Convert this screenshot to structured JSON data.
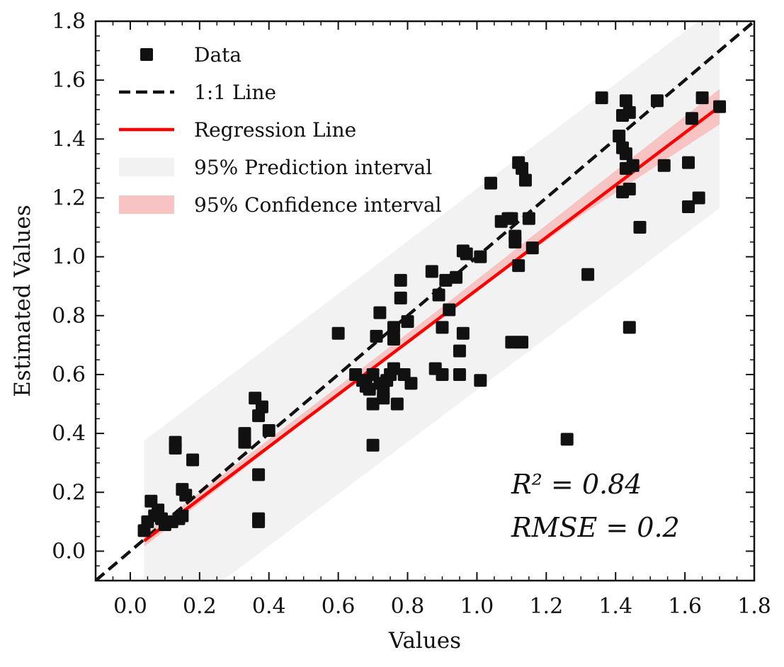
{
  "chart_data": {
    "type": "scatter",
    "title": "",
    "xlabel": "Values",
    "ylabel": "Estimated Values",
    "xlim": [
      -0.1,
      1.8
    ],
    "ylim": [
      -0.1,
      1.8
    ],
    "xticks": [
      "0.0",
      "0.2",
      "0.4",
      "0.6",
      "0.8",
      "1.0",
      "1.2",
      "1.4",
      "1.6",
      "1.8"
    ],
    "yticks": [
      "0.0",
      "0.2",
      "0.4",
      "0.6",
      "0.8",
      "1.0",
      "1.2",
      "1.4",
      "1.6",
      "1.8"
    ],
    "grid": false,
    "legend": {
      "position": "top-left",
      "entries": [
        {
          "label": "Data",
          "kind": "marker"
        },
        {
          "label": "1:1 Line",
          "kind": "dashed-line"
        },
        {
          "label": "Regression Line",
          "kind": "line"
        },
        {
          "label": "95% Prediction interval",
          "kind": "band-gray"
        },
        {
          "label": "95% Confidence interval",
          "kind": "band-red"
        }
      ]
    },
    "annotations": {
      "r2": "R² = 0.84",
      "rmse": "RMSE = 0.2"
    },
    "colors": {
      "points": "#111111",
      "one_to_one": "#111111",
      "regression": "#ff0000",
      "prediction_band": "#f2f2f2",
      "confidence_band": "#f7c3c3"
    },
    "regression": {
      "x": [
        0.04,
        1.7
      ],
      "y": [
        0.035,
        1.51
      ]
    },
    "prediction_interval": {
      "x": [
        0.04,
        1.7
      ],
      "lower": [
        -0.3,
        1.165
      ],
      "upper": [
        0.375,
        1.855
      ]
    },
    "confidence_interval": {
      "x": [
        0.04,
        0.5,
        0.9,
        1.3,
        1.7
      ],
      "lower": [
        0.015,
        0.44,
        0.8,
        1.14,
        1.45
      ],
      "upper": [
        0.055,
        0.47,
        0.83,
        1.2,
        1.57
      ]
    },
    "points": [
      [
        0.04,
        0.07
      ],
      [
        0.05,
        0.1
      ],
      [
        0.06,
        0.17
      ],
      [
        0.07,
        0.12
      ],
      [
        0.08,
        0.14
      ],
      [
        0.09,
        0.11
      ],
      [
        0.1,
        0.09
      ],
      [
        0.12,
        0.1
      ],
      [
        0.14,
        0.11
      ],
      [
        0.15,
        0.12
      ],
      [
        0.13,
        0.35
      ],
      [
        0.13,
        0.37
      ],
      [
        0.15,
        0.21
      ],
      [
        0.16,
        0.19
      ],
      [
        0.18,
        0.31
      ],
      [
        0.33,
        0.4
      ],
      [
        0.33,
        0.37
      ],
      [
        0.36,
        0.52
      ],
      [
        0.37,
        0.46
      ],
      [
        0.38,
        0.49
      ],
      [
        0.4,
        0.41
      ],
      [
        0.37,
        0.26
      ],
      [
        0.37,
        0.11
      ],
      [
        0.37,
        0.1
      ],
      [
        0.6,
        0.74
      ],
      [
        0.65,
        0.6
      ],
      [
        0.67,
        0.58
      ],
      [
        0.68,
        0.56
      ],
      [
        0.69,
        0.55
      ],
      [
        0.7,
        0.6
      ],
      [
        0.7,
        0.5
      ],
      [
        0.71,
        0.73
      ],
      [
        0.72,
        0.81
      ],
      [
        0.72,
        0.57
      ],
      [
        0.73,
        0.54
      ],
      [
        0.74,
        0.58
      ],
      [
        0.75,
        0.6
      ],
      [
        0.76,
        0.62
      ],
      [
        0.76,
        0.76
      ],
      [
        0.76,
        0.72
      ],
      [
        0.77,
        0.5
      ],
      [
        0.78,
        0.86
      ],
      [
        0.78,
        0.92
      ],
      [
        0.79,
        0.6
      ],
      [
        0.8,
        0.78
      ],
      [
        0.81,
        0.57
      ],
      [
        0.7,
        0.36
      ],
      [
        0.73,
        0.52
      ],
      [
        0.87,
        0.95
      ],
      [
        0.88,
        0.62
      ],
      [
        0.89,
        0.87
      ],
      [
        0.9,
        0.6
      ],
      [
        0.9,
        0.76
      ],
      [
        0.91,
        0.92
      ],
      [
        0.92,
        0.82
      ],
      [
        0.94,
        0.93
      ],
      [
        0.95,
        0.68
      ],
      [
        0.95,
        0.6
      ],
      [
        0.96,
        0.74
      ],
      [
        0.96,
        1.02
      ],
      [
        0.97,
        1.01
      ],
      [
        1.01,
        1.0
      ],
      [
        1.01,
        0.58
      ],
      [
        1.04,
        1.25
      ],
      [
        1.07,
        1.12
      ],
      [
        1.09,
        1.13
      ],
      [
        1.1,
        1.13
      ],
      [
        1.1,
        0.71
      ],
      [
        1.11,
        1.05
      ],
      [
        1.11,
        1.07
      ],
      [
        1.12,
        0.97
      ],
      [
        1.12,
        1.32
      ],
      [
        1.13,
        1.3
      ],
      [
        1.14,
        1.26
      ],
      [
        1.15,
        1.13
      ],
      [
        1.16,
        1.03
      ],
      [
        1.13,
        0.71
      ],
      [
        1.26,
        0.38
      ],
      [
        1.32,
        0.94
      ],
      [
        1.36,
        1.54
      ],
      [
        1.41,
        1.41
      ],
      [
        1.42,
        1.48
      ],
      [
        1.42,
        1.37
      ],
      [
        1.43,
        1.35
      ],
      [
        1.43,
        1.3
      ],
      [
        1.43,
        1.53
      ],
      [
        1.44,
        1.49
      ],
      [
        1.44,
        1.23
      ],
      [
        1.42,
        1.22
      ],
      [
        1.45,
        1.31
      ],
      [
        1.47,
        1.1
      ],
      [
        1.44,
        0.76
      ],
      [
        1.52,
        1.53
      ],
      [
        1.54,
        1.31
      ],
      [
        1.61,
        1.32
      ],
      [
        1.61,
        1.17
      ],
      [
        1.62,
        1.47
      ],
      [
        1.64,
        1.2
      ],
      [
        1.65,
        1.54
      ],
      [
        1.7,
        1.51
      ]
    ]
  }
}
